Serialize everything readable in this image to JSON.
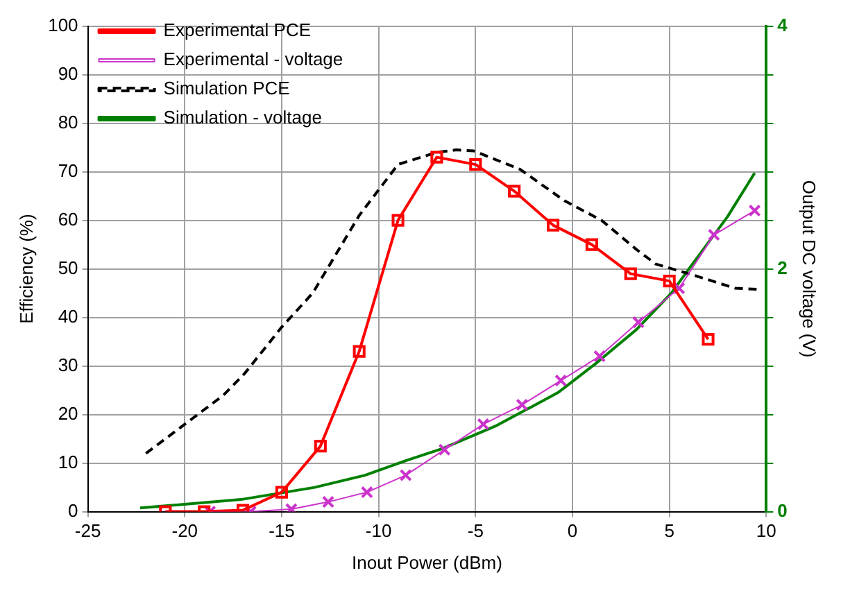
{
  "chart_data": {
    "type": "line",
    "xlabel": "Inout Power (dBm)",
    "ylabel": "Efficiency (%)",
    "y2label": "Output DC voltage (V)",
    "xlim": [
      -25,
      10
    ],
    "xticks": [
      -25,
      -20,
      -15,
      -10,
      -5,
      0,
      5,
      10
    ],
    "ylim": [
      0,
      100
    ],
    "yticks": [
      0,
      10,
      20,
      30,
      40,
      50,
      60,
      70,
      80,
      90,
      100
    ],
    "y2lim": [
      0,
      4
    ],
    "y2ticks": [
      0,
      {
        "value": 0.4,
        "label": null
      },
      {
        "value": 0.8,
        "label": null
      },
      {
        "value": 1.2,
        "label": null
      },
      {
        "value": 1.6,
        "label": null
      },
      2,
      {
        "value": 2.4,
        "label": null
      },
      {
        "value": 2.8,
        "label": null
      },
      {
        "value": 3.2,
        "label": null
      },
      {
        "value": 3.6,
        "label": null
      },
      4
    ],
    "grid": true,
    "legend": "top left",
    "series": [
      {
        "name": "Experimental PCE",
        "color": "#ff0000",
        "marker": "square",
        "x": [
          -21,
          -19,
          -17,
          -15,
          -13,
          -11,
          -9,
          -7,
          -5,
          -3,
          -1,
          1,
          3,
          5,
          7
        ],
        "values": [
          0,
          0,
          0.3,
          4,
          13.5,
          33,
          60,
          73,
          71.5,
          66,
          59,
          55,
          49,
          47.5,
          35.5
        ]
      },
      {
        "name": "Experimental - voltage",
        "color": "#cc33cc",
        "marker": "cross",
        "axis": "y2",
        "x": [
          -18.7,
          -16.6,
          -14.5,
          -12.6,
          -10.6,
          -8.6,
          -6.6,
          -4.6,
          -2.6,
          -0.6,
          1.4,
          3.4,
          5.5,
          7.3,
          9.4
        ],
        "values": [
          0,
          0,
          0.02,
          0.08,
          0.16,
          0.3,
          0.51,
          0.72,
          0.88,
          1.08,
          1.28,
          1.56,
          1.84,
          2.28,
          2.48
        ]
      },
      {
        "name": "Simulation PCE",
        "color": "#000000",
        "marker": "none",
        "line_style": "dashed",
        "x": [
          -22,
          -18,
          -16.9,
          -15,
          -13.4,
          -11,
          -9,
          -7,
          -6,
          -5.1,
          -2.7,
          -0.4,
          1.5,
          3.3,
          4.3,
          6.5,
          8.4,
          9.5
        ],
        "values": [
          12,
          24,
          28.5,
          38,
          45,
          61,
          71.5,
          74,
          74.5,
          74.3,
          70.5,
          64,
          60,
          54,
          51,
          48.4,
          46,
          45.8
        ]
      },
      {
        "name": "Simulation - voltage",
        "color": "#008000",
        "marker": "none",
        "axis": "y2",
        "x": [
          -22.3,
          -17.1,
          -15.2,
          -13.3,
          -10.7,
          -8.6,
          -6.7,
          -3.9,
          -0.75,
          1.2,
          3.3,
          5.1,
          6.1,
          8,
          9.4
        ],
        "values": [
          0.03,
          0.1,
          0.15,
          0.2,
          0.3,
          0.42,
          0.52,
          0.71,
          0.98,
          1.22,
          1.5,
          1.8,
          2.02,
          2.43,
          2.79
        ]
      }
    ]
  }
}
